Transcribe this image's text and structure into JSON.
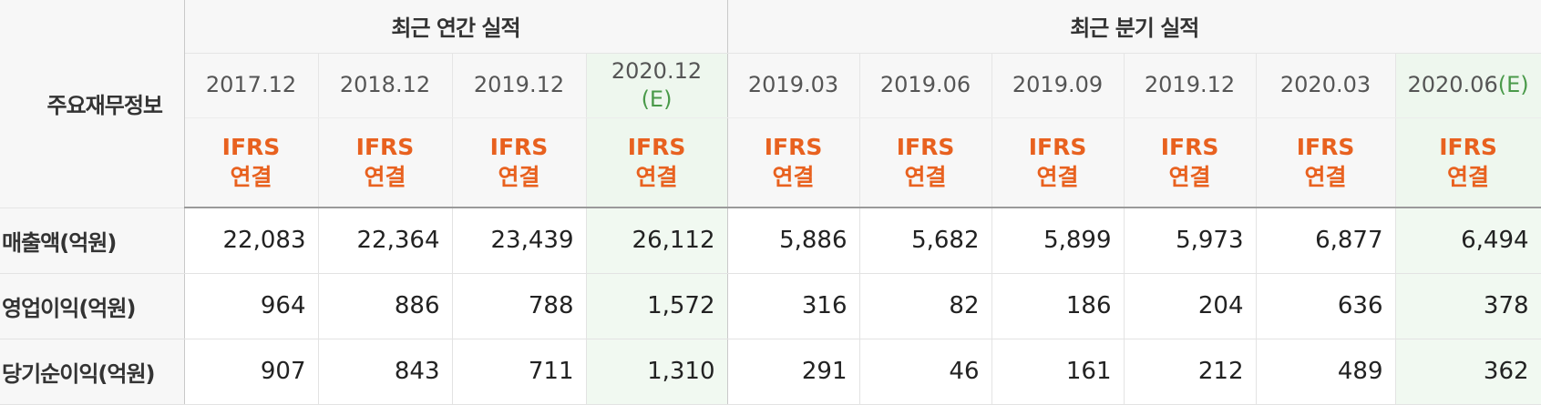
{
  "table": {
    "corner_label": "주요재무정보",
    "groups": {
      "annual": "최근 연간 실적",
      "quarterly": "최근 분기 실적"
    },
    "periods": [
      {
        "label": "2017.12",
        "estimate": ""
      },
      {
        "label": "2018.12",
        "estimate": ""
      },
      {
        "label": "2019.12",
        "estimate": ""
      },
      {
        "label": "2020.12",
        "estimate": "(E)"
      },
      {
        "label": "2019.03",
        "estimate": ""
      },
      {
        "label": "2019.06",
        "estimate": ""
      },
      {
        "label": "2019.09",
        "estimate": ""
      },
      {
        "label": "2019.12",
        "estimate": ""
      },
      {
        "label": "2020.03",
        "estimate": ""
      },
      {
        "label": "2020.06",
        "estimate": "(E)"
      }
    ],
    "accounting": {
      "line1": "IFRS",
      "line2": "연결"
    },
    "rows": [
      {
        "label": "매출액(억원)",
        "values": [
          "22,083",
          "22,364",
          "23,439",
          "26,112",
          "5,886",
          "5,682",
          "5,899",
          "5,973",
          "6,877",
          "6,494"
        ]
      },
      {
        "label": "영업이익(억원)",
        "values": [
          "964",
          "886",
          "788",
          "1,572",
          "316",
          "82",
          "186",
          "204",
          "636",
          "378"
        ]
      },
      {
        "label": "당기순이익(억원)",
        "values": [
          "907",
          "843",
          "711",
          "1,310",
          "291",
          "46",
          "161",
          "212",
          "489",
          "362"
        ]
      }
    ]
  }
}
